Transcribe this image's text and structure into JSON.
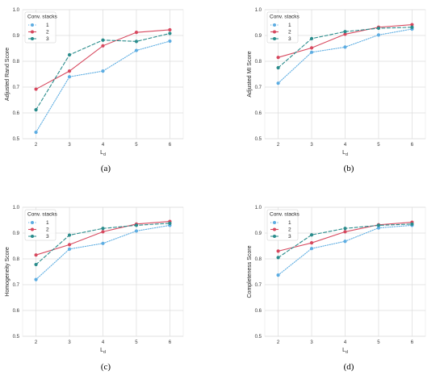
{
  "figure": {
    "panels": [
      {
        "label": "(a)",
        "ylabel": "Adjusted Rand Score"
      },
      {
        "label": "(b)",
        "ylabel": "Adjusted MI Score"
      },
      {
        "label": "(c)",
        "ylabel": "Homogeneity Score"
      },
      {
        "label": "(d)",
        "ylabel": "Completeness Score"
      }
    ]
  },
  "style": {
    "series_colors": [
      "#5dade2",
      "#d7485e",
      "#2a8c8c"
    ],
    "series_dash": [
      "dotted",
      "solid",
      "dashed"
    ],
    "grid_color": "#dcdcdc",
    "panel_background": "#ffffff"
  },
  "chart_data": [
    {
      "type": "line",
      "title": "",
      "xlabel": "L_d",
      "ylabel": "Adjusted Rand Score",
      "x": [
        2,
        3,
        4,
        5,
        6
      ],
      "xlim": [
        1.6,
        6.4
      ],
      "ylim": [
        0.5,
        1.0
      ],
      "yticks": [
        0.5,
        0.6,
        0.7,
        0.8,
        0.9,
        1.0
      ],
      "grid": true,
      "legend": {
        "title": "Conv. stacks",
        "position": "top-left"
      },
      "series": [
        {
          "name": "1",
          "values": [
            0.525,
            0.74,
            0.762,
            0.842,
            0.878
          ]
        },
        {
          "name": "2",
          "values": [
            0.692,
            0.762,
            0.86,
            0.912,
            0.922
          ]
        },
        {
          "name": "3",
          "values": [
            0.612,
            0.825,
            0.882,
            0.877,
            0.908
          ]
        }
      ]
    },
    {
      "type": "line",
      "title": "",
      "xlabel": "L_d",
      "ylabel": "Adjusted MI Score",
      "x": [
        2,
        3,
        4,
        5,
        6
      ],
      "xlim": [
        1.6,
        6.4
      ],
      "ylim": [
        0.5,
        1.0
      ],
      "yticks": [
        0.5,
        0.6,
        0.7,
        0.8,
        0.9,
        1.0
      ],
      "grid": true,
      "legend": {
        "title": "Conv. stacks",
        "position": "top-left"
      },
      "series": [
        {
          "name": "1",
          "values": [
            0.715,
            0.835,
            0.855,
            0.902,
            0.925
          ]
        },
        {
          "name": "2",
          "values": [
            0.815,
            0.852,
            0.905,
            0.932,
            0.942
          ]
        },
        {
          "name": "3",
          "values": [
            0.775,
            0.888,
            0.915,
            0.928,
            0.932
          ]
        }
      ]
    },
    {
      "type": "line",
      "title": "",
      "xlabel": "L_d",
      "ylabel": "Homogeneity Score",
      "x": [
        2,
        3,
        4,
        5,
        6
      ],
      "xlim": [
        1.6,
        6.4
      ],
      "ylim": [
        0.5,
        1.0
      ],
      "yticks": [
        0.5,
        0.6,
        0.7,
        0.8,
        0.9,
        1.0
      ],
      "grid": true,
      "legend": {
        "title": "Conv. stacks",
        "position": "top-left"
      },
      "series": [
        {
          "name": "1",
          "values": [
            0.72,
            0.838,
            0.86,
            0.908,
            0.93
          ]
        },
        {
          "name": "2",
          "values": [
            0.815,
            0.855,
            0.905,
            0.935,
            0.945
          ]
        },
        {
          "name": "3",
          "values": [
            0.778,
            0.892,
            0.918,
            0.93,
            0.938
          ]
        }
      ]
    },
    {
      "type": "line",
      "title": "",
      "xlabel": "L_d",
      "ylabel": "Completeness Score",
      "x": [
        2,
        3,
        4,
        5,
        6
      ],
      "xlim": [
        1.6,
        6.4
      ],
      "ylim": [
        0.5,
        1.0
      ],
      "yticks": [
        0.5,
        0.6,
        0.7,
        0.8,
        0.9,
        1.0
      ],
      "grid": true,
      "legend": {
        "title": "Conv. stacks",
        "position": "top-left"
      },
      "series": [
        {
          "name": "1",
          "values": [
            0.737,
            0.84,
            0.868,
            0.92,
            0.93
          ]
        },
        {
          "name": "2",
          "values": [
            0.83,
            0.862,
            0.905,
            0.932,
            0.942
          ]
        },
        {
          "name": "3",
          "values": [
            0.805,
            0.893,
            0.918,
            0.93,
            0.935
          ]
        }
      ]
    }
  ]
}
